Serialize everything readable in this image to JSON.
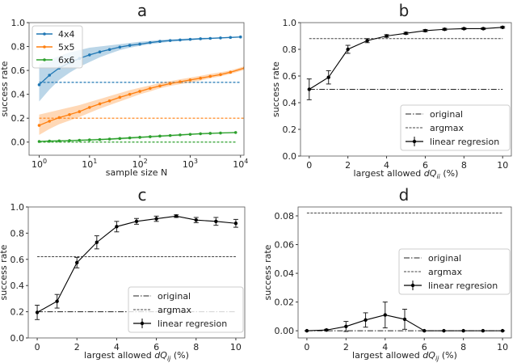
{
  "chart_data": [
    {
      "panel": "a",
      "type": "line",
      "title": "a",
      "xlabel": "sample size N",
      "ylabel": "success rate",
      "xscale": "log",
      "xlim": [
        0.63,
        11700
      ],
      "ylim": [
        -0.11,
        1.0
      ],
      "xticks": [
        {
          "base": "10",
          "exp": "0",
          "value": 1
        },
        {
          "base": "10",
          "exp": "1",
          "value": 10
        },
        {
          "base": "10",
          "exp": "2",
          "value": 100
        },
        {
          "base": "10",
          "exp": "3",
          "value": 1000
        },
        {
          "base": "10",
          "exp": "4",
          "value": 10000
        }
      ],
      "yticks": [
        "0.0",
        "0.2",
        "0.4",
        "0.6",
        "0.8",
        "1.0"
      ],
      "legend": "top-left",
      "grid": false,
      "series": [
        {
          "name": "4x4",
          "color": "#1f77b4",
          "x": [
            1,
            1.6,
            2.5,
            4,
            6.3,
            10,
            16,
            25,
            40,
            63,
            100,
            160,
            250,
            400,
            630,
            1000,
            1600,
            2500,
            4000,
            6300,
            10000
          ],
          "y": [
            0.48,
            0.56,
            0.62,
            0.665,
            0.7,
            0.73,
            0.755,
            0.775,
            0.795,
            0.81,
            0.82,
            0.833,
            0.843,
            0.85,
            0.855,
            0.86,
            0.865,
            0.868,
            0.872,
            0.876,
            0.88
          ],
          "lower": [
            0.34,
            0.44,
            0.52,
            0.58,
            0.63,
            0.67,
            0.71,
            0.74,
            0.77,
            0.79,
            0.805,
            0.82,
            0.83,
            0.84,
            0.846,
            0.852,
            0.858,
            0.862,
            0.867,
            0.872,
            0.876
          ],
          "upper": [
            0.65,
            0.69,
            0.72,
            0.75,
            0.77,
            0.79,
            0.8,
            0.81,
            0.82,
            0.83,
            0.84,
            0.847,
            0.855,
            0.86,
            0.864,
            0.868,
            0.872,
            0.875,
            0.878,
            0.881,
            0.884
          ],
          "reference": 0.5
        },
        {
          "name": "5x5",
          "color": "#ff7f0e",
          "x": [
            1,
            1.6,
            2.5,
            4,
            6.3,
            10,
            16,
            25,
            40,
            63,
            100,
            160,
            250,
            400,
            630,
            1000,
            1600,
            2500,
            4000,
            6300,
            12000
          ],
          "y": [
            0.14,
            0.175,
            0.205,
            0.23,
            0.255,
            0.29,
            0.32,
            0.345,
            0.375,
            0.4,
            0.425,
            0.45,
            0.47,
            0.49,
            0.505,
            0.52,
            0.535,
            0.55,
            0.565,
            0.585,
            0.62
          ],
          "lower": [
            0.06,
            0.11,
            0.15,
            0.18,
            0.21,
            0.245,
            0.28,
            0.31,
            0.34,
            0.37,
            0.4,
            0.425,
            0.45,
            0.47,
            0.485,
            0.5,
            0.515,
            0.535,
            0.55,
            0.57,
            0.605
          ],
          "upper": [
            0.23,
            0.25,
            0.27,
            0.29,
            0.31,
            0.335,
            0.36,
            0.385,
            0.41,
            0.435,
            0.455,
            0.475,
            0.495,
            0.51,
            0.525,
            0.54,
            0.555,
            0.57,
            0.585,
            0.6,
            0.635
          ],
          "reference": 0.2
        },
        {
          "name": "6x6",
          "color": "#2ca02c",
          "x": [
            1,
            1.6,
            2.5,
            4,
            6.3,
            10,
            16,
            25,
            40,
            63,
            100,
            160,
            250,
            400,
            630,
            1000,
            1600,
            2500,
            4000,
            8000
          ],
          "y": [
            0.005,
            0.008,
            0.01,
            0.012,
            0.015,
            0.018,
            0.021,
            0.025,
            0.03,
            0.035,
            0.04,
            0.045,
            0.05,
            0.055,
            0.06,
            0.065,
            0.07,
            0.073,
            0.076,
            0.08
          ],
          "lower": [
            0.0,
            0.002,
            0.004,
            0.006,
            0.008,
            0.011,
            0.014,
            0.018,
            0.022,
            0.027,
            0.032,
            0.037,
            0.042,
            0.047,
            0.052,
            0.058,
            0.063,
            0.067,
            0.071,
            0.076
          ],
          "upper": [
            0.012,
            0.015,
            0.017,
            0.019,
            0.022,
            0.025,
            0.029,
            0.033,
            0.038,
            0.043,
            0.048,
            0.053,
            0.058,
            0.063,
            0.068,
            0.072,
            0.076,
            0.079,
            0.082,
            0.084
          ],
          "reference": 0.0
        }
      ]
    },
    {
      "panel": "b",
      "type": "line",
      "title": "b",
      "xlabel": {
        "prefix": "largest allowed ",
        "var": "dQ",
        "sub": "ii",
        "suffix": " (%)"
      },
      "ylabel": "success rate",
      "xlim": [
        -0.45,
        10.45
      ],
      "ylim": [
        0.0,
        1.0
      ],
      "xticks": [
        "0",
        "2",
        "4",
        "6",
        "8",
        "10"
      ],
      "yticks": [
        "0.0",
        "0.2",
        "0.4",
        "0.6",
        "0.8",
        "1.0"
      ],
      "legend": "bottom-right",
      "legend_entries": [
        "original",
        "argmax",
        "linear regresion"
      ],
      "original": 0.5,
      "argmax": 0.88,
      "series": [
        {
          "name": "linear regresion",
          "color": "#000000",
          "x": [
            0,
            1,
            2,
            3,
            4,
            5,
            6,
            7,
            8,
            9,
            10
          ],
          "y": [
            0.5,
            0.59,
            0.8,
            0.865,
            0.9,
            0.92,
            0.94,
            0.95,
            0.955,
            0.955,
            0.965
          ],
          "err": [
            0.078,
            0.05,
            0.03,
            0.015,
            0.01,
            0.008,
            0.008,
            0.007,
            0.006,
            0.006,
            0.006
          ]
        }
      ]
    },
    {
      "panel": "c",
      "type": "line",
      "title": "c",
      "xlabel": {
        "prefix": "largest allowed ",
        "var": "dQ",
        "sub": "ij",
        "suffix": " (%)"
      },
      "ylabel": "success rate",
      "xlim": [
        -0.45,
        10.45
      ],
      "ylim": [
        0.0,
        1.0
      ],
      "xticks": [
        "0",
        "2",
        "4",
        "6",
        "8",
        "10"
      ],
      "yticks": [
        "0.0",
        "0.2",
        "0.4",
        "0.6",
        "0.8",
        "1.0"
      ],
      "legend": "bottom-right",
      "legend_entries": [
        "original",
        "argmax",
        "linear regresion"
      ],
      "original": 0.2,
      "argmax": 0.62,
      "series": [
        {
          "name": "linear regresion",
          "color": "#000000",
          "x": [
            0,
            1,
            2,
            3,
            4,
            5,
            6,
            7,
            8,
            9,
            10
          ],
          "y": [
            0.195,
            0.28,
            0.575,
            0.73,
            0.85,
            0.89,
            0.91,
            0.93,
            0.9,
            0.89,
            0.875
          ],
          "err": [
            0.055,
            0.052,
            0.04,
            0.05,
            0.04,
            0.022,
            0.02,
            0.01,
            0.02,
            0.03,
            0.03
          ]
        }
      ]
    },
    {
      "panel": "d",
      "type": "line",
      "title": "d",
      "xlabel": {
        "prefix": "largest allowed ",
        "var": "dQ",
        "sub": "ij",
        "suffix": " (%)"
      },
      "ylabel": "success rate",
      "xlim": [
        -0.45,
        10.45
      ],
      "ylim": [
        -0.005,
        0.0862
      ],
      "xticks": [
        "0",
        "2",
        "4",
        "6",
        "8",
        "10"
      ],
      "yticks": [
        "0.00",
        "0.02",
        "0.04",
        "0.06",
        "0.08"
      ],
      "legend": "center-right",
      "legend_entries": [
        "original",
        "argmax",
        "linear regresion"
      ],
      "original": 0.0,
      "argmax": 0.082,
      "series": [
        {
          "name": "linear regresion",
          "color": "#000000",
          "x": [
            0,
            1,
            2,
            3,
            4,
            5,
            6,
            7,
            8,
            9,
            10
          ],
          "y": [
            0.0,
            0.0005,
            0.003,
            0.0075,
            0.011,
            0.008,
            0.0,
            0.0,
            0.0,
            0.0,
            0.0
          ],
          "err": [
            0.0,
            0.0005,
            0.0035,
            0.005,
            0.009,
            0.007,
            0.0,
            0.0,
            0.0,
            0.0,
            0.0
          ]
        }
      ]
    }
  ]
}
